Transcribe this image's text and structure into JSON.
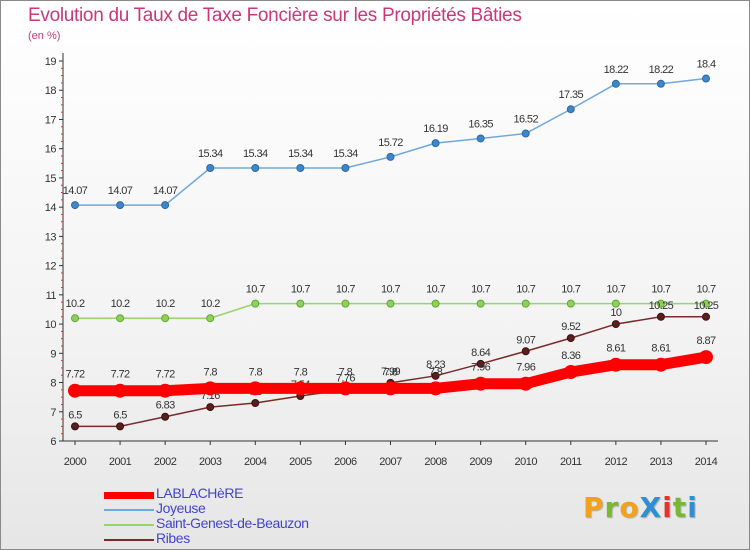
{
  "title": "Evolution du Taux de Taxe Foncière sur les Propriétés Bâties",
  "subtitle": "(en %)",
  "logo": {
    "text": "ProXiti",
    "letters": [
      {
        "ch": "P",
        "color": "#f2a21a"
      },
      {
        "ch": "r",
        "color": "#79b833"
      },
      {
        "ch": "o",
        "color": "#f2a21a"
      },
      {
        "ch": "X",
        "color": "#2f8fd0"
      },
      {
        "ch": "i",
        "color": "#e2342d"
      },
      {
        "ch": "t",
        "color": "#79b833"
      },
      {
        "ch": "i",
        "color": "#2f8fd0"
      }
    ]
  },
  "chart_data": {
    "type": "line",
    "title": "Evolution du Taux de Taxe Foncière sur les Propriétés Bâties",
    "ylabel": "(en %)",
    "xlabel": "",
    "ylim": [
      6,
      19
    ],
    "yticks": [
      6,
      7,
      8,
      9,
      10,
      11,
      12,
      13,
      14,
      15,
      16,
      17,
      18,
      19
    ],
    "grid": false,
    "legend_position": "bottom-left",
    "x": [
      "2000",
      "2001",
      "2002",
      "2003",
      "2004",
      "2005",
      "2006",
      "2007",
      "2008",
      "2009",
      "2010",
      "2011",
      "2012",
      "2013",
      "2014"
    ],
    "series": [
      {
        "name": "LABLACHèRE",
        "color": "#ff0000",
        "values": [
          7.72,
          7.72,
          7.72,
          7.8,
          7.8,
          7.8,
          7.8,
          7.8,
          7.8,
          7.96,
          7.96,
          8.36,
          8.61,
          8.61,
          8.87
        ],
        "labels": [
          "7.72",
          "7.72",
          "7.72",
          "7.8",
          "7.8",
          "7.8",
          "7.8",
          "7.8",
          "7.8",
          "7.96",
          "7.96",
          "8.36",
          "8.61",
          "8.61",
          "8.87"
        ]
      },
      {
        "name": "Joyeuse",
        "color": "#6fa8dc",
        "values": [
          14.07,
          14.07,
          14.07,
          15.34,
          15.34,
          15.34,
          15.34,
          15.72,
          16.19,
          16.35,
          16.52,
          17.35,
          18.22,
          18.22,
          18.4
        ],
        "labels": [
          "14.07",
          "14.07",
          "14.07",
          "15.34",
          "15.34",
          "15.34",
          "15.34",
          "15.72",
          "16.19",
          "16.35",
          "16.52",
          "17.35",
          "18.22",
          "18.22",
          "18.4"
        ]
      },
      {
        "name": "Saint-Genest-de-Beauzon",
        "color": "#99d36b",
        "values": [
          10.2,
          10.2,
          10.2,
          10.2,
          10.7,
          10.7,
          10.7,
          10.7,
          10.7,
          10.7,
          10.7,
          10.7,
          10.7,
          10.7,
          10.7
        ],
        "labels": [
          "10.2",
          "10.2",
          "10.2",
          "10.2",
          "10.7",
          "10.7",
          "10.7",
          "10.7",
          "10.7",
          "10.7",
          "10.7",
          "10.7",
          "10.7",
          "10.7",
          "10.7"
        ]
      },
      {
        "name": "Ribes",
        "color": "#7a2a2a",
        "values": [
          6.5,
          6.5,
          6.83,
          7.16,
          7.3,
          7.54,
          7.76,
          7.99,
          8.23,
          8.64,
          9.07,
          9.52,
          10,
          10.25,
          10.25
        ],
        "labels": [
          "6.5",
          "6.5",
          "6.83",
          "7.16",
          "7.3",
          "7.54",
          "7.76",
          "7.99",
          "8.23",
          "8.64",
          "9.07",
          "9.52",
          "10",
          "10.25",
          "10.25"
        ]
      }
    ]
  }
}
